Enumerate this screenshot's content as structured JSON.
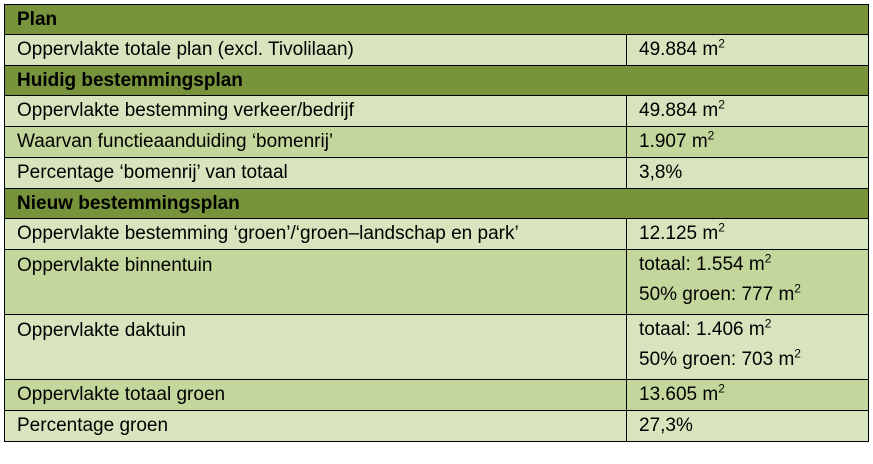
{
  "sections": {
    "plan": "Plan",
    "huidig": "Huidig bestemmingsplan",
    "nieuw": "Nieuw bestemmingsplan"
  },
  "unit_sup": "2",
  "rows": {
    "r1": {
      "label": "Oppervlakte totale plan (excl. Tivolilaan)",
      "value": "49.884 m"
    },
    "r2": {
      "label": "Oppervlakte bestemming verkeer/bedrijf",
      "value": "49.884 m"
    },
    "r3": {
      "label": "Waarvan functieaanduiding ‘bomenrij’",
      "value": "1.907 m"
    },
    "r4": {
      "label": "Percentage ‘bomenrij’ van totaal",
      "value": "3,8%"
    },
    "r5": {
      "label": "Oppervlakte bestemming ‘groen’/‘groen–landschap en park’",
      "value": "12.125 m"
    },
    "r6": {
      "label": "Oppervlakte binnentuin",
      "value1": "totaal: 1.554 m",
      "value2": "50% groen: 777 m"
    },
    "r7": {
      "label": "Oppervlakte daktuin",
      "value1": "totaal: 1.406 m",
      "value2": "50% groen: 703 m"
    },
    "r8": {
      "label": "Oppervlakte totaal groen",
      "value": "13.605 m"
    },
    "r9": {
      "label": "Percentage groen",
      "value": "27,3%"
    }
  },
  "colors": {
    "section_header": "#77933c",
    "row_light": "#d7e4bd",
    "row_dark": "#c3d69b"
  }
}
